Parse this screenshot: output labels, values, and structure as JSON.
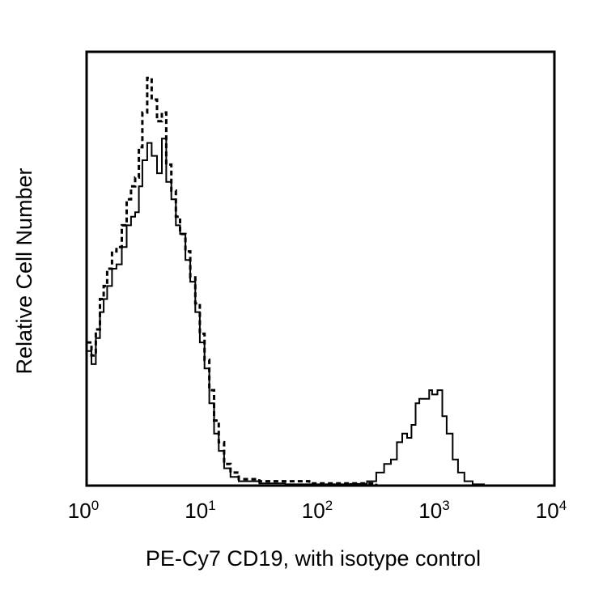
{
  "chart_data": {
    "type": "line",
    "title": "",
    "xlabel": "PE-Cy7 CD19, with isotype control",
    "ylabel": "Relative Cell Number",
    "x_scale": "log",
    "xlim": [
      1,
      10000
    ],
    "ylim": [
      0,
      100
    ],
    "x_ticks": [
      {
        "base": "10",
        "exp": "0",
        "value": 1
      },
      {
        "base": "10",
        "exp": "1",
        "value": 10
      },
      {
        "base": "10",
        "exp": "2",
        "value": 100
      },
      {
        "base": "10",
        "exp": "3",
        "value": 1000
      },
      {
        "base": "10",
        "exp": "4",
        "value": 10000
      }
    ],
    "y_ticks": [],
    "grid": false,
    "legend": "none",
    "series": [
      {
        "style": "solid",
        "color": "#000000",
        "x": [
          1.0,
          1.1,
          1.2,
          1.3,
          1.4,
          1.5,
          1.65,
          1.8,
          2.0,
          2.2,
          2.4,
          2.6,
          2.8,
          3.0,
          3.3,
          3.6,
          4.0,
          4.4,
          4.8,
          5.3,
          5.8,
          6.3,
          7.0,
          7.7,
          8.5,
          9.3,
          10.2,
          11.2,
          12.3,
          13.5,
          15,
          17,
          20,
          30,
          50,
          80,
          120,
          180,
          250,
          300,
          350,
          400,
          450,
          500,
          550,
          600,
          650,
          700,
          750,
          800,
          850,
          900,
          950,
          1000,
          1100,
          1200,
          1350,
          1500,
          1700,
          2000,
          2500,
          3000
        ],
        "values": [
          31,
          28,
          34,
          40,
          43,
          46,
          50,
          51,
          55,
          60,
          62,
          63,
          69,
          75,
          79,
          76,
          72,
          80,
          70,
          66,
          60,
          58,
          52,
          47,
          40,
          33,
          27,
          19,
          12,
          8,
          4,
          2,
          1,
          0.5,
          0.3,
          0.3,
          0.3,
          0.4,
          1,
          3,
          5,
          6,
          10,
          12,
          11,
          14,
          19,
          20,
          20,
          20,
          22,
          21,
          21,
          22,
          16,
          12,
          6,
          3,
          1,
          0.3,
          0,
          0
        ]
      },
      {
        "style": "dashed",
        "color": "#000000",
        "x": [
          1.0,
          1.1,
          1.2,
          1.3,
          1.4,
          1.5,
          1.65,
          1.8,
          2.0,
          2.2,
          2.4,
          2.6,
          2.8,
          3.0,
          3.3,
          3.6,
          4.0,
          4.4,
          4.8,
          5.3,
          5.8,
          6.3,
          7.0,
          7.7,
          8.5,
          9.3,
          10.2,
          11.2,
          12.3,
          13.5,
          15,
          17,
          20,
          30,
          50,
          80,
          120,
          180,
          300,
          1000,
          3000
        ],
        "values": [
          33,
          30,
          36,
          43,
          46,
          50,
          54,
          55,
          60,
          66,
          69,
          71,
          78,
          86,
          94,
          89,
          84,
          86,
          74,
          68,
          62,
          58,
          54,
          48,
          42,
          35,
          29,
          22,
          15,
          10,
          5,
          3,
          1.5,
          1,
          1,
          0.5,
          0.5,
          0.5,
          0,
          0,
          0
        ]
      }
    ]
  }
}
